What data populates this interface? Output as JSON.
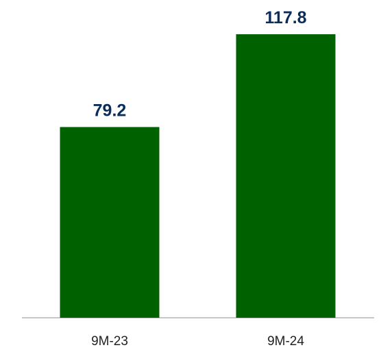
{
  "chart_data": {
    "type": "bar",
    "categories": [
      "9M-23",
      "9M-24"
    ],
    "values": [
      79.2,
      117.8
    ],
    "data_labels": [
      "79.2",
      "117.8"
    ],
    "ylim": [
      0,
      117.8
    ],
    "grid": false,
    "legend": "none",
    "colors": {
      "bar": "#006100",
      "data_label": "#0b2d5c",
      "axis": "#b3b3b3"
    }
  }
}
